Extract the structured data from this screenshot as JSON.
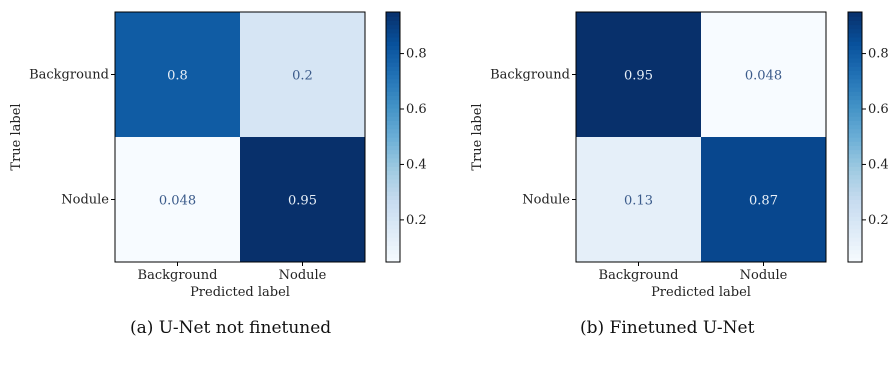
{
  "chart_data": [
    {
      "type": "heatmap",
      "caption": "(a) U-Net not finetuned",
      "xlabel": "Predicted label",
      "ylabel": "True label",
      "x_categories": [
        "Background",
        "Nodule"
      ],
      "y_categories": [
        "Background",
        "Nodule"
      ],
      "values": [
        [
          0.8,
          0.2
        ],
        [
          0.048,
          0.95
        ]
      ],
      "value_labels": [
        [
          "0.8",
          "0.2"
        ],
        [
          "0.048",
          "0.95"
        ]
      ],
      "colormap": "Blues",
      "colorbar": {
        "range": [
          0.048,
          0.95
        ],
        "ticks": [
          0.2,
          0.4,
          0.6,
          0.8
        ],
        "tick_labels": [
          "0.2",
          "0.4",
          "0.6",
          "0.8"
        ]
      }
    },
    {
      "type": "heatmap",
      "caption": "(b) Finetuned U-Net",
      "xlabel": "Predicted label",
      "ylabel": "True label",
      "x_categories": [
        "Background",
        "Nodule"
      ],
      "y_categories": [
        "Background",
        "Nodule"
      ],
      "values": [
        [
          0.95,
          0.048
        ],
        [
          0.13,
          0.87
        ]
      ],
      "value_labels": [
        [
          "0.95",
          "0.048"
        ],
        [
          "0.13",
          "0.87"
        ]
      ],
      "colormap": "Blues",
      "colorbar": {
        "range": [
          0.048,
          0.95
        ],
        "ticks": [
          0.2,
          0.4,
          0.6,
          0.8
        ],
        "tick_labels": [
          "0.2",
          "0.4",
          "0.6",
          "0.8"
        ]
      }
    }
  ]
}
